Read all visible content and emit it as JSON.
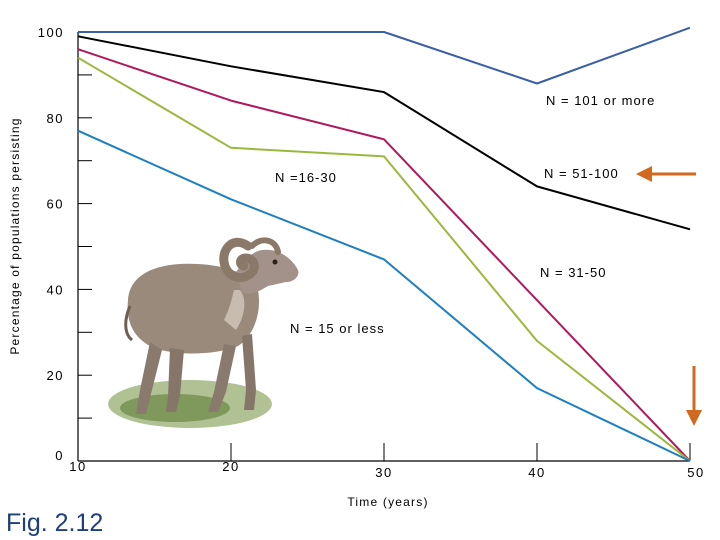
{
  "figure_caption": "Fig. 2.12",
  "chart_data": {
    "type": "line",
    "xlabel": "Time (years)",
    "ylabel": "Percentage of populations persisting",
    "xlim": [
      10,
      50
    ],
    "ylim": [
      0,
      100
    ],
    "x_ticks": [
      "10",
      "20",
      "30",
      "40",
      "50"
    ],
    "y_ticks": [
      "0",
      "20",
      "40",
      "60",
      "80",
      "100"
    ],
    "grid": false,
    "series": [
      {
        "name": "N = 101 or more",
        "color": "#3a5fa8",
        "x": [
          10,
          20,
          30,
          40,
          50
        ],
        "y": [
          100,
          100,
          100,
          88,
          101
        ]
      },
      {
        "name": "N = 51-100",
        "color": "#000000",
        "x": [
          10,
          20,
          30,
          40,
          50
        ],
        "y": [
          99,
          92,
          86,
          64,
          54
        ]
      },
      {
        "name": "N = 31-50",
        "color": "#b0185a",
        "x": [
          10,
          20,
          30,
          50
        ],
        "y": [
          96,
          84,
          75,
          0
        ]
      },
      {
        "name": "N =16-30",
        "color": "#9ab83c",
        "x": [
          10,
          20,
          30,
          40,
          50
        ],
        "y": [
          94,
          73,
          71,
          28,
          0
        ]
      },
      {
        "name": "N = 15 or less",
        "color": "#1c7fc4",
        "x": [
          10,
          20,
          30,
          40,
          50
        ],
        "y": [
          77,
          61,
          47,
          17,
          0
        ]
      }
    ],
    "arrow_color": "#d2691e"
  }
}
